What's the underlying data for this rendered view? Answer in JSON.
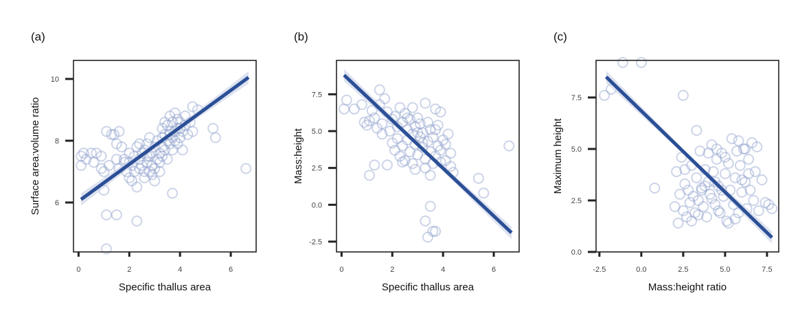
{
  "colors": {
    "points": "#8f9fcc",
    "line": "#2b4f96",
    "band": "#c7cfe6",
    "axis": "#222222"
  },
  "chart_data": [
    {
      "type": "scatter",
      "panel_label": "(a)",
      "xlabel": "Specific thallus area",
      "ylabel": "Surface area:volume ratio",
      "xlim": [
        -0.2,
        7.0
      ],
      "ylim": [
        4.4,
        10.6
      ],
      "xticks": [
        0,
        2,
        4,
        6
      ],
      "yticks": [
        6,
        8,
        10
      ],
      "xtick_labels": [
        "0",
        "2",
        "4",
        "6"
      ],
      "ytick_labels": [
        "6",
        "8",
        "10"
      ],
      "grid": false,
      "trend_line": {
        "x": [
          0.1,
          6.7
        ],
        "y": [
          6.1,
          10.05
        ]
      },
      "points": [
        [
          0.1,
          7.2
        ],
        [
          0.1,
          7.5
        ],
        [
          0.2,
          7.6
        ],
        [
          0.3,
          7.4
        ],
        [
          0.5,
          7.6
        ],
        [
          0.6,
          7.3
        ],
        [
          0.7,
          7.6
        ],
        [
          0.9,
          7.5
        ],
        [
          0.9,
          7.1
        ],
        [
          1.0,
          7.0
        ],
        [
          1.0,
          6.4
        ],
        [
          1.1,
          8.3
        ],
        [
          1.2,
          7.2
        ],
        [
          1.3,
          8.2
        ],
        [
          1.4,
          8.2
        ],
        [
          1.5,
          7.9
        ],
        [
          1.5,
          7.4
        ],
        [
          1.6,
          8.3
        ],
        [
          1.6,
          7.1
        ],
        [
          1.7,
          7.8
        ],
        [
          1.8,
          7.4
        ],
        [
          1.9,
          7.0
        ],
        [
          2.0,
          7.6
        ],
        [
          2.0,
          6.8
        ],
        [
          2.1,
          7.2
        ],
        [
          2.1,
          6.7
        ],
        [
          2.2,
          7.5
        ],
        [
          2.2,
          7.0
        ],
        [
          2.3,
          7.8
        ],
        [
          2.3,
          6.5
        ],
        [
          2.4,
          7.1
        ],
        [
          2.4,
          7.4
        ],
        [
          2.5,
          7.6
        ],
        [
          2.5,
          7.2
        ],
        [
          2.6,
          7.7
        ],
        [
          2.6,
          7.0
        ],
        [
          2.6,
          6.8
        ],
        [
          2.7,
          7.3
        ],
        [
          2.7,
          7.9
        ],
        [
          2.8,
          7.5
        ],
        [
          2.8,
          7.0
        ],
        [
          2.8,
          8.1
        ],
        [
          2.9,
          7.2
        ],
        [
          2.9,
          7.6
        ],
        [
          3.0,
          7.8
        ],
        [
          3.0,
          7.1
        ],
        [
          3.0,
          6.7
        ],
        [
          3.1,
          7.4
        ],
        [
          3.1,
          8.0
        ],
        [
          3.2,
          7.6
        ],
        [
          3.2,
          7.3
        ],
        [
          3.3,
          8.1
        ],
        [
          3.3,
          7.8
        ],
        [
          3.3,
          7.5
        ],
        [
          3.4,
          8.2
        ],
        [
          3.4,
          7.7
        ],
        [
          3.5,
          8.0
        ],
        [
          3.5,
          7.4
        ],
        [
          3.5,
          8.5
        ],
        [
          3.6,
          8.3
        ],
        [
          3.6,
          7.9
        ],
        [
          3.6,
          8.8
        ],
        [
          3.7,
          8.1
        ],
        [
          3.7,
          7.7
        ],
        [
          3.7,
          8.6
        ],
        [
          3.8,
          8.3
        ],
        [
          3.8,
          8.0
        ],
        [
          3.8,
          8.9
        ],
        [
          3.9,
          8.4
        ],
        [
          3.9,
          7.9
        ],
        [
          4.0,
          8.1
        ],
        [
          4.0,
          8.6
        ],
        [
          4.1,
          8.3
        ],
        [
          4.1,
          7.7
        ],
        [
          4.2,
          8.5
        ],
        [
          4.2,
          8.8
        ],
        [
          4.3,
          8.2
        ],
        [
          4.4,
          8.6
        ],
        [
          4.5,
          9.1
        ],
        [
          4.5,
          8.3
        ],
        [
          4.7,
          9.0
        ],
        [
          3.3,
          8.4
        ],
        [
          3.4,
          8.6
        ],
        [
          3.9,
          8.7
        ],
        [
          1.1,
          5.6
        ],
        [
          1.5,
          5.6
        ],
        [
          2.3,
          5.4
        ],
        [
          3.7,
          6.3
        ],
        [
          5.3,
          8.4
        ],
        [
          5.4,
          8.1
        ],
        [
          6.6,
          7.1
        ],
        [
          1.1,
          4.5
        ],
        [
          2.0,
          7.3
        ],
        [
          2.4,
          7.9
        ],
        [
          1.8,
          7.3
        ],
        [
          2.9,
          6.9
        ],
        [
          3.2,
          7.0
        ],
        [
          3.6,
          8.2
        ],
        [
          4.0,
          8.4
        ],
        [
          2.7,
          7.5
        ]
      ]
    },
    {
      "type": "scatter",
      "panel_label": "(b)",
      "xlabel": "Specific thallus area",
      "ylabel": "Mass:height",
      "xlim": [
        -0.2,
        7.0
      ],
      "ylim": [
        -3.2,
        9.8
      ],
      "xticks": [
        0,
        2,
        4,
        6
      ],
      "yticks": [
        -2.5,
        0.0,
        2.5,
        5.0,
        7.5
      ],
      "xtick_labels": [
        "0",
        "2",
        "4",
        "6"
      ],
      "ytick_labels": [
        "-2.5",
        "0.0",
        "2.5",
        "5.0",
        "7.5"
      ],
      "grid": false,
      "trend_line": {
        "x": [
          0.1,
          6.7
        ],
        "y": [
          8.8,
          -1.9
        ]
      },
      "points": [
        [
          0.1,
          6.5
        ],
        [
          0.2,
          7.1
        ],
        [
          0.5,
          6.5
        ],
        [
          0.8,
          6.8
        ],
        [
          0.9,
          5.6
        ],
        [
          1.0,
          5.4
        ],
        [
          1.1,
          5.7
        ],
        [
          1.2,
          6.4
        ],
        [
          1.3,
          5.9
        ],
        [
          1.4,
          5.2
        ],
        [
          1.5,
          6.8
        ],
        [
          1.6,
          5.5
        ],
        [
          1.6,
          4.8
        ],
        [
          1.7,
          7.2
        ],
        [
          1.8,
          6.3
        ],
        [
          1.9,
          5.0
        ],
        [
          2.0,
          5.8
        ],
        [
          2.0,
          4.2
        ],
        [
          2.1,
          6.0
        ],
        [
          2.1,
          3.7
        ],
        [
          2.2,
          5.3
        ],
        [
          2.2,
          4.5
        ],
        [
          2.3,
          6.6
        ],
        [
          2.3,
          3.3
        ],
        [
          2.4,
          5.6
        ],
        [
          2.4,
          4.0
        ],
        [
          2.5,
          6.2
        ],
        [
          2.5,
          3.0
        ],
        [
          2.6,
          5.1
        ],
        [
          2.6,
          4.4
        ],
        [
          2.7,
          5.8
        ],
        [
          2.7,
          3.6
        ],
        [
          2.8,
          6.6
        ],
        [
          2.8,
          4.8
        ],
        [
          2.8,
          2.8
        ],
        [
          2.9,
          5.3
        ],
        [
          2.9,
          4.1
        ],
        [
          3.0,
          5.9
        ],
        [
          3.0,
          3.4
        ],
        [
          3.1,
          4.6
        ],
        [
          3.1,
          5.5
        ],
        [
          3.2,
          3.9
        ],
        [
          3.2,
          4.9
        ],
        [
          3.3,
          6.9
        ],
        [
          3.3,
          3.1
        ],
        [
          3.4,
          5.6
        ],
        [
          3.4,
          4.3
        ],
        [
          3.5,
          3.6
        ],
        [
          3.5,
          5.1
        ],
        [
          3.6,
          2.8
        ],
        [
          3.6,
          4.6
        ],
        [
          3.7,
          6.5
        ],
        [
          3.7,
          3.3
        ],
        [
          3.8,
          4.0
        ],
        [
          3.8,
          5.4
        ],
        [
          3.9,
          3.7
        ],
        [
          3.9,
          6.3
        ],
        [
          4.0,
          4.4
        ],
        [
          4.1,
          3.0
        ],
        [
          4.2,
          4.8
        ],
        [
          4.3,
          3.5
        ],
        [
          4.3,
          2.6
        ],
        [
          4.4,
          2.2
        ],
        [
          3.3,
          2.5
        ],
        [
          3.5,
          2.0
        ],
        [
          1.5,
          7.8
        ],
        [
          1.1,
          2.0
        ],
        [
          1.3,
          2.7
        ],
        [
          1.8,
          2.7
        ],
        [
          3.3,
          -1.1
        ],
        [
          3.5,
          -0.1
        ],
        [
          3.4,
          -2.2
        ],
        [
          3.7,
          -1.8
        ],
        [
          3.6,
          -1.8
        ],
        [
          5.4,
          1.8
        ],
        [
          5.6,
          0.8
        ],
        [
          6.6,
          4.0
        ],
        [
          2.9,
          2.4
        ],
        [
          3.9,
          2.9
        ],
        [
          4.1,
          4.1
        ],
        [
          2.6,
          5.9
        ],
        [
          3.0,
          4.9
        ],
        [
          3.2,
          4.2
        ],
        [
          2.4,
          2.9
        ],
        [
          3.7,
          5.1
        ]
      ]
    },
    {
      "type": "scatter",
      "panel_label": "(c)",
      "xlabel": "Mass:height ratio",
      "ylabel": "Maximum height",
      "xlim": [
        -2.7,
        8.2
      ],
      "ylim": [
        0,
        9.3
      ],
      "xticks": [
        -2.5,
        0.0,
        2.5,
        5.0,
        7.5
      ],
      "yticks": [
        0.0,
        2.5,
        5.0,
        7.5
      ],
      "xtick_labels": [
        "-2.5",
        "0.0",
        "2.5",
        "5.0",
        "7.5"
      ],
      "ytick_labels": [
        "0.0",
        "2.5",
        "5.0",
        "7.5"
      ],
      "grid": false,
      "trend_line": {
        "x": [
          -2.1,
          7.8
        ],
        "y": [
          8.5,
          0.7
        ]
      },
      "points": [
        [
          -2.2,
          7.6
        ],
        [
          -1.8,
          7.9
        ],
        [
          -1.1,
          9.2
        ],
        [
          0.0,
          9.2
        ],
        [
          2.5,
          7.6
        ],
        [
          3.3,
          5.9
        ],
        [
          0.8,
          3.1
        ],
        [
          2.0,
          2.2
        ],
        [
          2.1,
          3.9
        ],
        [
          2.2,
          1.4
        ],
        [
          2.3,
          2.8
        ],
        [
          2.4,
          4.6
        ],
        [
          2.5,
          2.0
        ],
        [
          2.6,
          3.3
        ],
        [
          2.7,
          1.7
        ],
        [
          2.8,
          3.0
        ],
        [
          2.9,
          2.4
        ],
        [
          3.0,
          4.2
        ],
        [
          3.1,
          2.7
        ],
        [
          3.2,
          1.9
        ],
        [
          3.3,
          3.6
        ],
        [
          3.4,
          2.5
        ],
        [
          3.5,
          4.9
        ],
        [
          3.6,
          3.1
        ],
        [
          3.7,
          2.2
        ],
        [
          3.8,
          4.0
        ],
        [
          3.9,
          1.7
        ],
        [
          4.0,
          3.4
        ],
        [
          4.1,
          2.8
        ],
        [
          4.2,
          5.2
        ],
        [
          4.3,
          3.9
        ],
        [
          4.4,
          2.3
        ],
        [
          4.5,
          4.5
        ],
        [
          4.6,
          3.2
        ],
        [
          4.7,
          1.9
        ],
        [
          4.8,
          4.8
        ],
        [
          4.9,
          2.7
        ],
        [
          5.0,
          3.8
        ],
        [
          5.1,
          1.5
        ],
        [
          5.2,
          4.3
        ],
        [
          5.3,
          3.0
        ],
        [
          5.4,
          5.5
        ],
        [
          5.5,
          2.3
        ],
        [
          5.6,
          3.6
        ],
        [
          5.7,
          4.9
        ],
        [
          5.8,
          1.9
        ],
        [
          5.9,
          4.2
        ],
        [
          6.0,
          2.9
        ],
        [
          6.1,
          5.0
        ],
        [
          6.2,
          3.4
        ],
        [
          6.3,
          2.1
        ],
        [
          6.4,
          4.5
        ],
        [
          6.5,
          3.0
        ],
        [
          6.6,
          5.3
        ],
        [
          6.7,
          2.5
        ],
        [
          6.8,
          3.9
        ],
        [
          6.9,
          5.1
        ],
        [
          7.0,
          2.0
        ],
        [
          7.2,
          3.5
        ],
        [
          7.4,
          2.4
        ],
        [
          7.6,
          2.3
        ],
        [
          7.8,
          2.1
        ],
        [
          4.0,
          4.8
        ],
        [
          4.5,
          5.0
        ],
        [
          5.0,
          4.6
        ],
        [
          3.6,
          3.0
        ],
        [
          4.4,
          3.4
        ],
        [
          4.8,
          3.0
        ],
        [
          5.2,
          1.4
        ],
        [
          3.0,
          1.5
        ],
        [
          3.4,
          1.8
        ],
        [
          5.6,
          1.6
        ],
        [
          6.0,
          3.5
        ],
        [
          6.4,
          3.8
        ],
        [
          2.6,
          4.0
        ],
        [
          4.2,
          2.6
        ],
        [
          4.6,
          2.0
        ],
        [
          5.8,
          5.4
        ],
        [
          6.2,
          5.0
        ],
        [
          3.8,
          3.2
        ]
      ]
    }
  ]
}
